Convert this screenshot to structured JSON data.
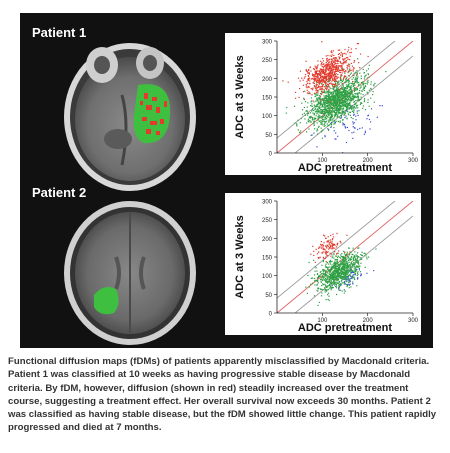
{
  "figure": {
    "patients": [
      {
        "label": "Patient 1"
      },
      {
        "label": "Patient 2"
      }
    ]
  },
  "chart_data": [
    {
      "type": "scatter",
      "title": "",
      "xlabel": "ADC pretreatment",
      "ylabel": "ADC at 3 Weeks",
      "xlim": [
        0,
        300
      ],
      "ylim": [
        0,
        300
      ],
      "xticks": [
        "100",
        "200",
        "300"
      ],
      "yticks": [
        "0",
        "50",
        "100",
        "150",
        "200",
        "250",
        "300"
      ],
      "reference_lines": [
        {
          "color": "#999999",
          "intercept": 40
        },
        {
          "color": "#e06060",
          "intercept": 0
        },
        {
          "color": "#999999",
          "intercept": -40
        }
      ],
      "clusters": [
        {
          "color": "#2ea043",
          "center": [
            130,
            140
          ],
          "spread": [
            32,
            28
          ]
        },
        {
          "color": "#e23b2e",
          "center": [
            110,
            215
          ],
          "spread": [
            25,
            22
          ]
        },
        {
          "color": "#3b4fd8",
          "center": [
            160,
            70
          ],
          "spread": [
            35,
            25
          ]
        }
      ],
      "grid": false
    },
    {
      "type": "scatter",
      "title": "",
      "xlabel": "ADC pretreatment",
      "ylabel": "ADC at 3 Weeks",
      "xlim": [
        0,
        300
      ],
      "ylim": [
        0,
        300
      ],
      "xticks": [
        "100",
        "200",
        "300"
      ],
      "yticks": [
        "0",
        "50",
        "100",
        "150",
        "200",
        "250",
        "300"
      ],
      "reference_lines": [
        {
          "color": "#999999",
          "intercept": 40
        },
        {
          "color": "#e06060",
          "intercept": 0
        },
        {
          "color": "#999999",
          "intercept": -40
        }
      ],
      "clusters": [
        {
          "color": "#2ea043",
          "center": [
            135,
            110
          ],
          "spread": [
            25,
            22
          ]
        },
        {
          "color": "#e23b2e",
          "center": [
            110,
            175
          ],
          "spread": [
            15,
            15
          ]
        },
        {
          "color": "#3b4fd8",
          "center": [
            160,
            90
          ],
          "spread": [
            20,
            10
          ]
        }
      ],
      "grid": false
    }
  ],
  "caption": "Functional diffusion maps (fDMs) of patients apparently misclassified by Macdonald criteria. Patient 1 was classified at 10 weeks as having progressive stable disease by Macdonald criteria. By fDM, however, diffusion (shown in red) steadily increased over the treatment course, suggesting a treatment effect. Her overall survival now exceeds 30 months. Patient 2 was classified as having stable disease, but the fDM showed little change. This patient rapidly progressed and died at 7 months.",
  "colors": {
    "panel_bg": "#111111",
    "tumor_green": "#3fbf3f",
    "tumor_red": "#e23b2e"
  }
}
